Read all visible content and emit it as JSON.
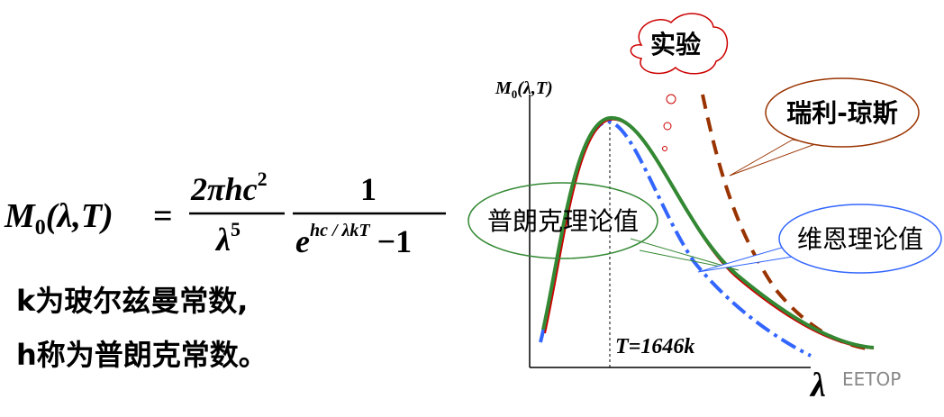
{
  "formula": {
    "lhs": "M",
    "lhs_sub": "0",
    "lhs_args": "(λ,T)",
    "equals": "=",
    "num1": "2πhc",
    "num1_sup": "2",
    "den1": "λ",
    "den1_sup": "5",
    "num2": "1",
    "den2": "e",
    "den2_sup": "hc / λkT",
    "den2_rest": "−1"
  },
  "notes": [
    "k为玻尔兹曼常数,",
    "h称为普朗克常数。"
  ],
  "chart": {
    "y_label": "M",
    "y_label_sub": "0",
    "y_label_args": "(λ,T)",
    "x_label": "λ",
    "temperature": "T=1646k",
    "labels": {
      "experiment": "实验",
      "rayleigh_jeans": "瑞利-琼斯",
      "planck": "普朗克理论值",
      "wien": "维恩理论值"
    }
  },
  "watermark": "EETOP"
}
